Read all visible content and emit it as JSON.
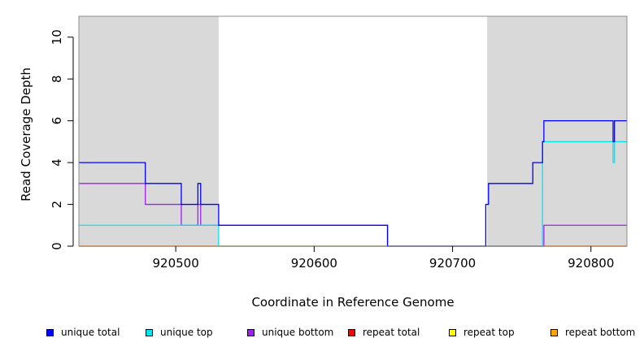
{
  "chart_data": {
    "type": "line",
    "title": "",
    "xlabel": "Coordinate in Reference Genome",
    "ylabel": "Read Coverage Depth",
    "xlim": [
      920430,
      920826
    ],
    "ylim": [
      0,
      11
    ],
    "x_ticks": [
      920500,
      920600,
      920700,
      920800
    ],
    "x_tick_labels": [
      "920500",
      "920600",
      "920700",
      "920800"
    ],
    "y_ticks": [
      0,
      2,
      4,
      6,
      8,
      10
    ],
    "y_tick_labels": [
      "0",
      "2",
      "4",
      "6",
      "8",
      "10"
    ],
    "shaded_regions": [
      [
        920430,
        920531
      ],
      [
        920725,
        920826
      ]
    ],
    "shade_color": "#d9d9d9",
    "grid": false,
    "legend_position": "bottom",
    "series": [
      {
        "name": "unique total",
        "color": "#0000ff",
        "steps": [
          [
            920430,
            4
          ],
          [
            920478,
            3
          ],
          [
            920504,
            2
          ],
          [
            920516,
            3
          ],
          [
            920518,
            2
          ],
          [
            920531,
            1
          ],
          [
            920653,
            0
          ],
          [
            920724,
            2
          ],
          [
            920726,
            3
          ],
          [
            920758,
            4
          ],
          [
            920765,
            5
          ],
          [
            920766,
            6
          ],
          [
            920816,
            5
          ],
          [
            920817,
            6
          ],
          [
            920826,
            6
          ]
        ]
      },
      {
        "name": "unique top",
        "color": "#00e5ee",
        "steps": [
          [
            920430,
            1
          ],
          [
            920531,
            0
          ],
          [
            920724,
            0
          ],
          [
            920765,
            5
          ],
          [
            920816,
            4
          ],
          [
            920817,
            5
          ],
          [
            920826,
            5
          ]
        ]
      },
      {
        "name": "unique bottom",
        "color": "#a020f0",
        "steps": [
          [
            920430,
            3
          ],
          [
            920478,
            2
          ],
          [
            920504,
            1
          ],
          [
            920516,
            2
          ],
          [
            920518,
            1
          ],
          [
            920531,
            1
          ],
          [
            920653,
            0
          ],
          [
            920766,
            1
          ],
          [
            920826,
            1
          ]
        ]
      },
      {
        "name": "repeat total",
        "color": "#ff0000",
        "steps": [
          [
            920430,
            0
          ],
          [
            920826,
            0
          ]
        ]
      },
      {
        "name": "repeat top",
        "color": "#ffff00",
        "steps": [
          [
            920430,
            0
          ],
          [
            920826,
            0
          ]
        ]
      },
      {
        "name": "repeat bottom",
        "color": "#ffa500",
        "steps": [
          [
            920430,
            0
          ],
          [
            920826,
            0
          ]
        ]
      }
    ]
  }
}
